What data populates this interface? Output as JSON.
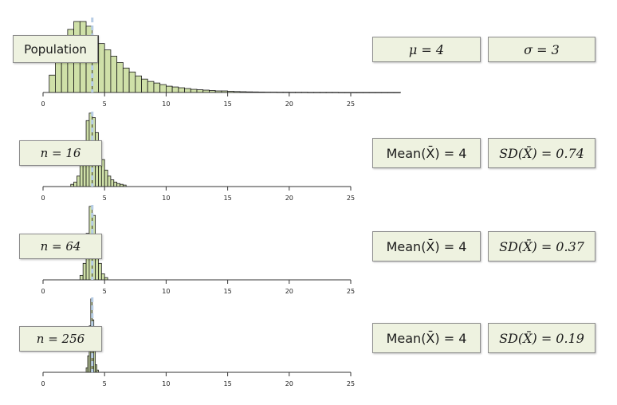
{
  "colors": {
    "bar_fill": "#cfe0a8",
    "bar_stroke": "#1a1a1a",
    "mean_line": "#b7cde6",
    "axis": "#333333",
    "box_fill": "#eef2e0"
  },
  "population": {
    "label": "Population",
    "mu_text": "μ = 4",
    "sigma_text": "σ = 3"
  },
  "samples": [
    {
      "label": "n = 16",
      "mean_text": "Mean(X̄) = 4",
      "sd_text": "SD(X̄) = 0.74"
    },
    {
      "label": "n = 64",
      "mean_text": "Mean(X̄) = 4",
      "sd_text": "SD(X̄) = 0.37"
    },
    {
      "label": "n = 256",
      "mean_text": "Mean(X̄) = 4",
      "sd_text": "SD(X̄) = 0.19"
    }
  ],
  "chart_data": [
    {
      "type": "bar",
      "panel": "population",
      "grid": false,
      "mean": 4,
      "xlim": [
        0,
        29
      ],
      "xticks": [
        0,
        5,
        10,
        15,
        20,
        25
      ],
      "bin_width": 0.5,
      "bin_starts": [
        0.5,
        1.0,
        1.5,
        2.0,
        2.5,
        3.0,
        3.5,
        4.0,
        4.5,
        5.0,
        5.5,
        6.0,
        6.5,
        7.0,
        7.5,
        8.0,
        8.5,
        9.0,
        9.5,
        10.0,
        10.5,
        11.0,
        11.5,
        12.0,
        12.5,
        13.0,
        13.5,
        14.0,
        14.5,
        15.0,
        15.5,
        16.0,
        16.5,
        17.0,
        17.5,
        18.0,
        18.5,
        19.0,
        19.5,
        20.0,
        20.5,
        21.0,
        21.5,
        22.0,
        22.5,
        23.0,
        23.5,
        24.0,
        24.5,
        25.0,
        25.5,
        26.0,
        26.5,
        27.0,
        27.5,
        28.0,
        28.5
      ],
      "values": [
        22,
        40,
        64,
        80,
        90,
        90,
        84,
        72,
        62,
        54,
        46,
        38,
        31,
        26,
        21,
        17,
        14,
        12,
        10,
        8,
        7,
        6,
        5,
        4,
        3.5,
        3,
        2.5,
        2,
        2,
        1.5,
        1.2,
        1,
        0.8,
        0.7,
        0.6,
        0.5,
        0.5,
        0.4,
        0.4,
        0.3,
        0.3,
        0.3,
        0.2,
        0.2,
        0.2,
        0.2,
        0.2,
        0.1,
        0.1,
        0.1,
        0.1,
        0.1,
        0.1,
        0.1,
        0.1,
        0.1,
        0.1
      ],
      "ylim": [
        0,
        95
      ]
    },
    {
      "type": "bar",
      "panel": "n = 16",
      "grid": false,
      "mean": 4,
      "xlim": [
        0,
        25
      ],
      "xticks": [
        0,
        5,
        10,
        15,
        20,
        25
      ],
      "bin_width": 0.25,
      "bin_starts": [
        2.25,
        2.5,
        2.75,
        3.0,
        3.25,
        3.5,
        3.75,
        4.0,
        4.25,
        4.5,
        4.75,
        5.0,
        5.25,
        5.5,
        5.75,
        6.0,
        6.25,
        6.5
      ],
      "values": [
        3,
        6,
        14,
        30,
        60,
        88,
        98,
        92,
        72,
        52,
        36,
        22,
        14,
        9,
        6,
        4,
        3,
        2
      ],
      "ylim": [
        0,
        100
      ]
    },
    {
      "type": "bar",
      "panel": "n = 64",
      "grid": false,
      "mean": 4,
      "xlim": [
        0,
        25
      ],
      "xticks": [
        0,
        5,
        10,
        15,
        20,
        25
      ],
      "bin_width": 0.25,
      "bin_starts": [
        3.0,
        3.25,
        3.5,
        3.75,
        4.0,
        4.25,
        4.5,
        4.75,
        5.0
      ],
      "values": [
        6,
        22,
        62,
        98,
        86,
        52,
        22,
        8,
        3
      ],
      "ylim": [
        0,
        100
      ]
    },
    {
      "type": "bar",
      "panel": "n = 256",
      "grid": false,
      "mean": 4,
      "xlim": [
        0,
        25
      ],
      "xticks": [
        0,
        5,
        10,
        15,
        20,
        25
      ],
      "bin_width": 0.125,
      "bin_starts": [
        3.5,
        3.625,
        3.75,
        3.875,
        4.0,
        4.125,
        4.25,
        4.375
      ],
      "values": [
        6,
        22,
        62,
        98,
        70,
        30,
        10,
        3
      ],
      "ylim": [
        0,
        100
      ]
    }
  ]
}
